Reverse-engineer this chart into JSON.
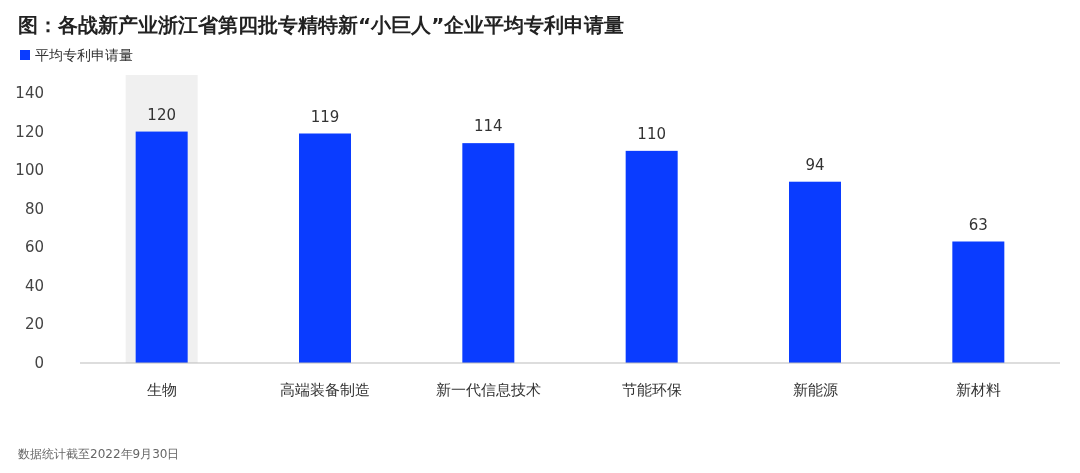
{
  "chart_data": {
    "type": "bar",
    "title": "图：各战新产业浙江省第四批专精特新“小巨人”企业平均专利申请量",
    "categories": [
      "生物",
      "高端装备制造",
      "新一代信息技术",
      "节能环保",
      "新能源",
      "新材料"
    ],
    "series": [
      {
        "name": "平均专利申请量",
        "color": "#0a3cff",
        "values": [
          120,
          119,
          114,
          110,
          94,
          63
        ]
      }
    ],
    "ylim": [
      0,
      140
    ],
    "yticks": [
      0,
      20,
      40,
      60,
      80,
      100,
      120,
      140
    ],
    "grid": false,
    "legend": "top left",
    "data_labels": true,
    "bands": [
      {
        "axis": "x",
        "from": "生物",
        "to": "生物",
        "color": "#f0f0f0"
      }
    ],
    "annotations": [
      "数据统计截至2022年9月30日"
    ]
  }
}
